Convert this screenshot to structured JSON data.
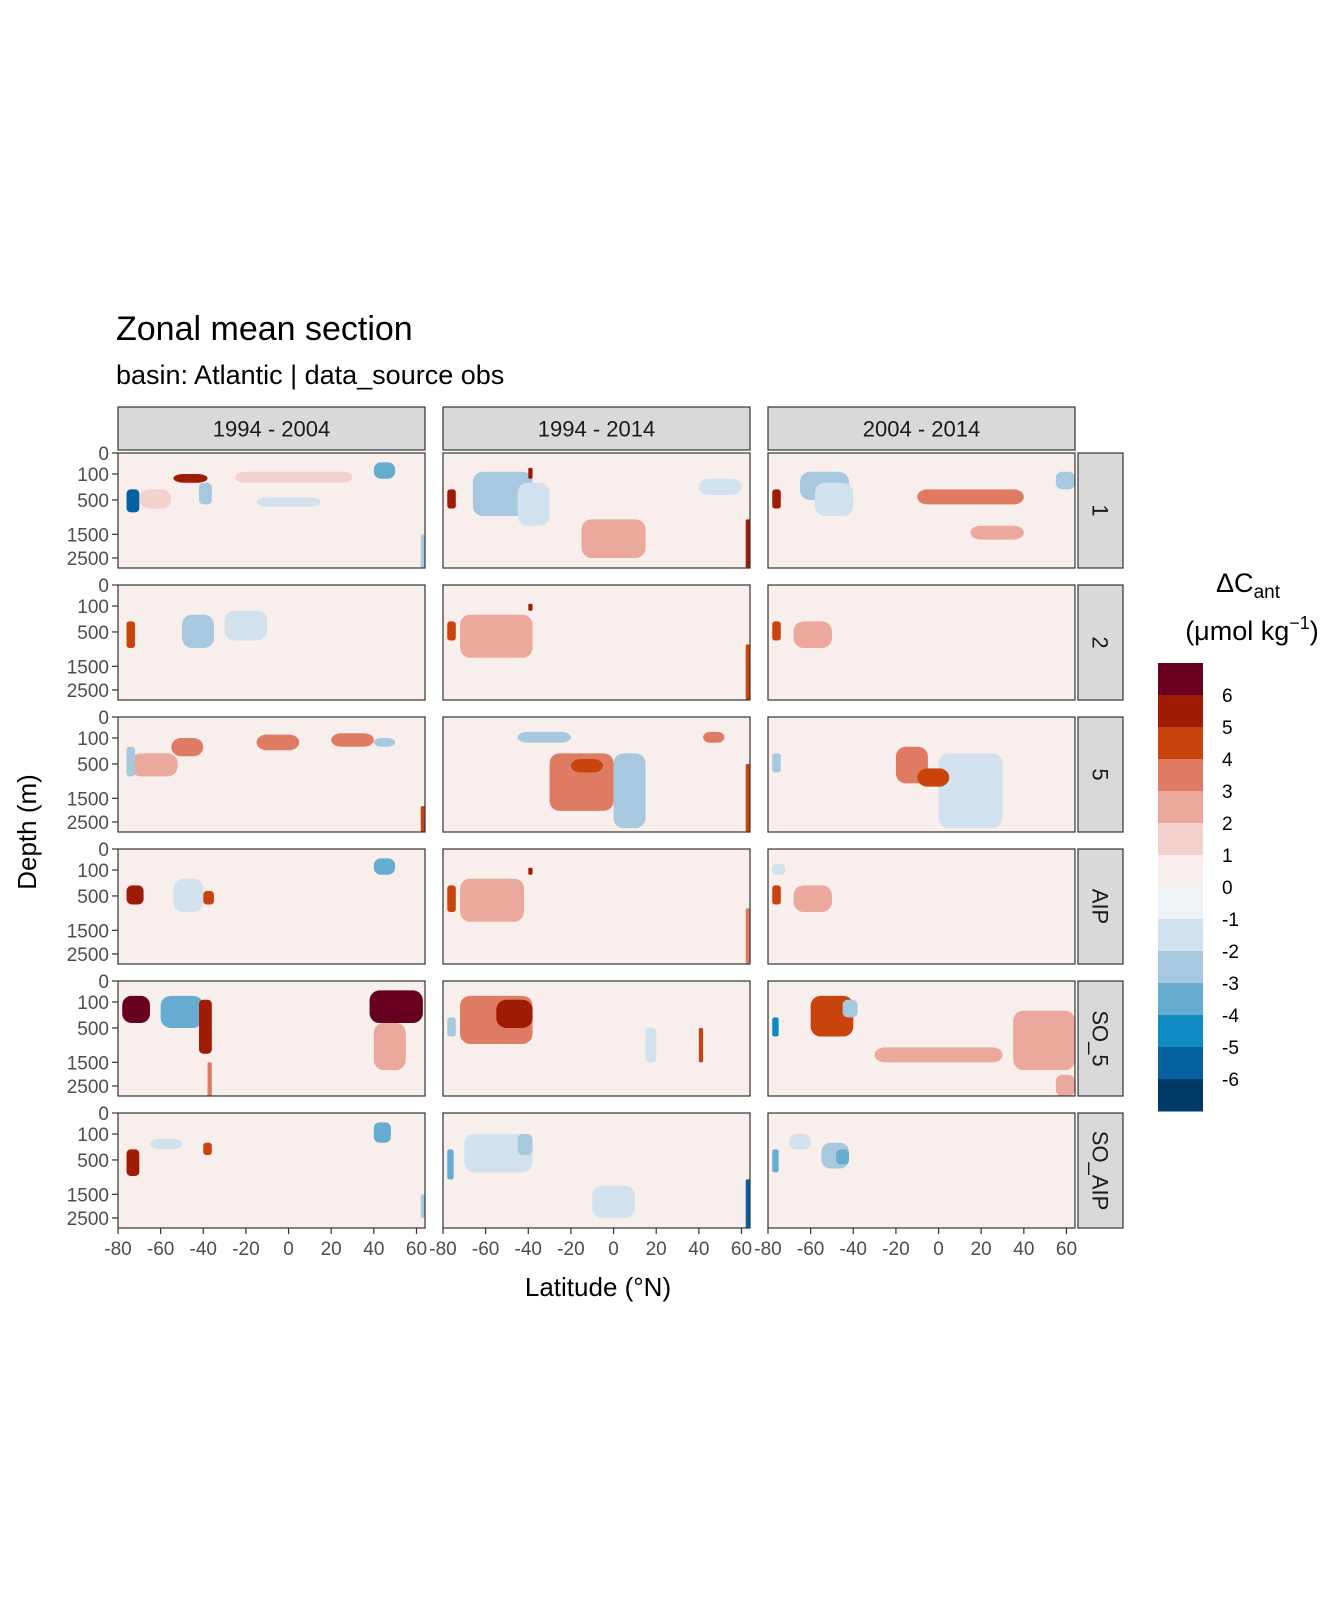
{
  "chart_data": {
    "type": "heatmap",
    "title": "Zonal mean section",
    "subtitle": "basin: Atlantic | data_source obs",
    "xlabel": "Latitude (°N)",
    "ylabel": "Depth (m)",
    "legend": {
      "title_main": "ΔC",
      "title_sub": "ant",
      "unit_prefix": "(μmol kg",
      "unit_sup": "−1",
      "unit_suffix": ")",
      "placement": "right",
      "colors": [
        "#67001f",
        "#a01b06",
        "#c9440c",
        "#e07b63",
        "#eba89c",
        "#f3d1cc",
        "#f8eeec",
        "#eef3f7",
        "#d1e1ee",
        "#a6c9e0",
        "#66acd1",
        "#0f8bc4",
        "#04609f",
        "#003a67"
      ],
      "labels": [
        "6",
        "5",
        "4",
        "3",
        "2",
        "1",
        "0",
        "-1",
        "-2",
        "-3",
        "-4",
        "-5",
        "-6"
      ]
    },
    "col_facets": [
      "1994 - 2004",
      "1994 - 2014",
      "2004 - 2014"
    ],
    "row_facets": [
      "1",
      "2",
      "5",
      "AIP",
      "SO_5",
      "SO_AIP"
    ],
    "x_range": [
      -80,
      64
    ],
    "x_ticks": [
      -80,
      -60,
      -40,
      -20,
      0,
      20,
      40,
      60
    ],
    "x_tick_labels": [
      "-80",
      "-60",
      "-40",
      "-20",
      "0",
      "20",
      "40",
      "60"
    ],
    "y_ticks": [
      0,
      100,
      500,
      1500,
      2500
    ],
    "y_tick_labels": [
      "0",
      "100",
      "500",
      "1500",
      "2500"
    ],
    "y_scale": "sqrt, reversed",
    "y_range": [
      0,
      3000
    ],
    "features": [
      [
        [
          [
            -76,
            300,
            -70,
            800,
            -6
          ],
          [
            -70,
            300,
            -55,
            700,
            1
          ],
          [
            -54,
            100,
            -38,
            200,
            5
          ],
          [
            -42,
            200,
            -36,
            600,
            -3
          ],
          [
            -15,
            450,
            15,
            650,
            -2
          ],
          [
            40,
            20,
            50,
            150,
            -4
          ],
          [
            62,
            1500,
            64,
            3000,
            -3
          ],
          [
            -25,
            80,
            30,
            200,
            1
          ]
        ],
        [
          [
            -50,
            200,
            -35,
            900,
            -3
          ],
          [
            -30,
            150,
            -10,
            700,
            -2
          ],
          [
            -76,
            300,
            -72,
            900,
            4
          ]
        ],
        [
          [
            -74,
            300,
            -52,
            800,
            2
          ],
          [
            -55,
            100,
            -40,
            350,
            3
          ],
          [
            -15,
            70,
            5,
            250,
            3
          ],
          [
            20,
            60,
            40,
            200,
            3
          ],
          [
            40,
            100,
            50,
            200,
            -3
          ],
          [
            62,
            1800,
            64,
            3000,
            4
          ],
          [
            -76,
            200,
            -72,
            800,
            -3
          ]
        ],
        [
          [
            -76,
            300,
            -68,
            700,
            5
          ],
          [
            -54,
            200,
            -40,
            900,
            -2
          ],
          [
            40,
            20,
            50,
            150,
            -4
          ],
          [
            -40,
            400,
            -35,
            700,
            4
          ]
        ],
        [
          [
            -78,
            50,
            -65,
            400,
            6
          ],
          [
            -60,
            50,
            -40,
            500,
            -4
          ],
          [
            -42,
            80,
            -36,
            1200,
            5
          ],
          [
            38,
            20,
            63,
            400,
            6
          ],
          [
            40,
            400,
            55,
            1800,
            2
          ],
          [
            -38,
            1500,
            -36,
            3000,
            3
          ]
        ],
        [
          [
            -76,
            300,
            -70,
            900,
            5
          ],
          [
            -65,
            150,
            -50,
            300,
            -2
          ],
          [
            -40,
            200,
            -36,
            400,
            4
          ],
          [
            40,
            20,
            48,
            200,
            -4
          ],
          [
            62,
            1500,
            64,
            2500,
            -3
          ]
        ]
      ],
      [
        [
          [
            -66,
            80,
            -38,
            900,
            -3
          ],
          [
            -45,
            200,
            -30,
            1200,
            -2
          ],
          [
            -78,
            300,
            -74,
            700,
            5
          ],
          [
            -15,
            1000,
            15,
            2500,
            2
          ],
          [
            -40,
            50,
            -38,
            150,
            5
          ],
          [
            40,
            150,
            60,
            400,
            -2
          ],
          [
            62,
            1000,
            64,
            3000,
            5
          ]
        ],
        [
          [
            -72,
            200,
            -38,
            1200,
            2
          ],
          [
            -78,
            300,
            -74,
            700,
            4
          ],
          [
            -40,
            80,
            -38,
            150,
            5
          ],
          [
            62,
            800,
            64,
            3000,
            4
          ]
        ],
        [
          [
            -30,
            300,
            0,
            2000,
            3
          ],
          [
            -20,
            400,
            -5,
            700,
            4
          ],
          [
            0,
            300,
            15,
            2800,
            -3
          ],
          [
            -45,
            50,
            -20,
            150,
            -3
          ],
          [
            42,
            50,
            52,
            150,
            3
          ],
          [
            62,
            500,
            64,
            3000,
            4
          ]
        ],
        [
          [
            -72,
            200,
            -42,
            1200,
            2
          ],
          [
            -78,
            300,
            -74,
            900,
            4
          ],
          [
            -40,
            80,
            -38,
            150,
            5
          ],
          [
            62,
            800,
            64,
            3000,
            3
          ]
        ],
        [
          [
            -72,
            50,
            -38,
            900,
            3
          ],
          [
            -55,
            80,
            -38,
            500,
            5
          ],
          [
            -78,
            300,
            -74,
            700,
            -3
          ],
          [
            40,
            500,
            42,
            1500,
            4
          ],
          [
            15,
            500,
            20,
            1500,
            -2
          ]
        ],
        [
          [
            -70,
            100,
            -38,
            800,
            -2
          ],
          [
            -45,
            100,
            -38,
            400,
            -3
          ],
          [
            -78,
            300,
            -75,
            1000,
            -4
          ],
          [
            62,
            1000,
            64,
            3000,
            -6
          ],
          [
            -10,
            1200,
            10,
            2500,
            -2
          ]
        ]
      ],
      [
        [
          [
            -65,
            80,
            -42,
            500,
            -3
          ],
          [
            -58,
            200,
            -40,
            900,
            -2
          ],
          [
            -78,
            300,
            -74,
            700,
            5
          ],
          [
            -10,
            300,
            40,
            600,
            3
          ],
          [
            55,
            80,
            64,
            300,
            -3
          ],
          [
            15,
            1200,
            40,
            1700,
            2
          ]
        ],
        [
          [
            -68,
            300,
            -50,
            900,
            2
          ],
          [
            -78,
            300,
            -74,
            700,
            4
          ]
        ],
        [
          [
            -20,
            200,
            -5,
            1000,
            3
          ],
          [
            0,
            300,
            30,
            2800,
            -2
          ],
          [
            -10,
            600,
            5,
            1100,
            4
          ],
          [
            -78,
            300,
            -74,
            700,
            -3
          ]
        ],
        [
          [
            -68,
            300,
            -50,
            900,
            2
          ],
          [
            -78,
            300,
            -74,
            700,
            4
          ],
          [
            -78,
            50,
            -72,
            150,
            -2
          ]
        ],
        [
          [
            -60,
            50,
            -40,
            700,
            4
          ],
          [
            -45,
            80,
            -38,
            300,
            -3
          ],
          [
            -78,
            300,
            -75,
            700,
            -5
          ],
          [
            -30,
            1000,
            30,
            1500,
            2
          ],
          [
            35,
            200,
            64,
            1800,
            2
          ],
          [
            55,
            2000,
            64,
            3000,
            2
          ]
        ],
        [
          [
            -55,
            200,
            -42,
            700,
            -3
          ],
          [
            -48,
            300,
            -42,
            600,
            -4
          ],
          [
            -78,
            300,
            -75,
            800,
            -4
          ],
          [
            -70,
            100,
            -60,
            300,
            -2
          ]
        ]
      ]
    ]
  }
}
